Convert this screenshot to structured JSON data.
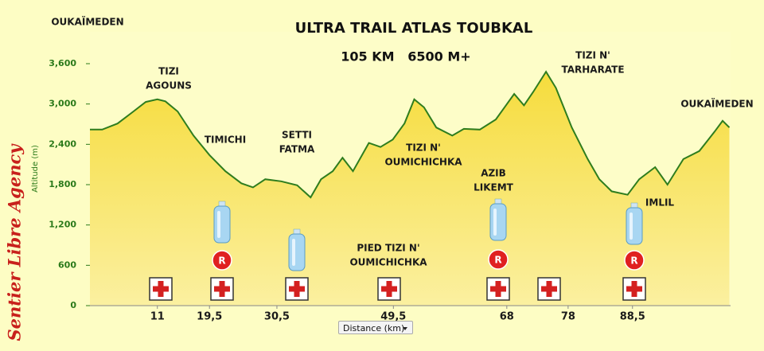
{
  "chart_data": {
    "type": "area",
    "title": "ULTRA TRAIL ATLAS TOUBKAL",
    "subtitle": "105 KM   6500 M+",
    "watermark": "Sentier Libre Agency",
    "y_label": "Altitude (m)",
    "x_label": "Distance (km)",
    "icon_label": "R",
    "color": "#2e7d1e",
    "fill": "#f6df4a",
    "x": [
      0,
      2.0,
      4.5,
      7.1,
      9.1,
      11.0,
      12.3,
      14.3,
      16.9,
      19.5,
      22.1,
      24.7,
      26.6,
      28.6,
      31.2,
      33.8,
      36.0,
      37.7,
      39.6,
      41.2,
      42.9,
      45.5,
      47.4,
      49.4,
      51.3,
      52.9,
      54.5,
      56.5,
      59.1,
      61.0,
      63.6,
      66.2,
      69.2,
      70.8,
      72.3,
      74.4,
      76.0,
      78.6,
      81.2,
      83.1,
      85.1,
      87.7,
      89.6,
      92.2,
      94.2,
      96.8,
      99.4,
      101.9,
      103.2,
      104.3
    ],
    "values": [
      2620,
      2620,
      2710,
      2890,
      3030,
      3070,
      3040,
      2890,
      2530,
      2240,
      2000,
      1820,
      1760,
      1880,
      1850,
      1790,
      1610,
      1880,
      2000,
      2200,
      2000,
      2420,
      2360,
      2470,
      2710,
      3070,
      2950,
      2650,
      2530,
      2630,
      2620,
      2770,
      3150,
      2980,
      3180,
      3480,
      3240,
      2650,
      2180,
      1880,
      1700,
      1650,
      1880,
      2060,
      1800,
      2180,
      2300,
      2590,
      2750,
      2650
    ],
    "xlim": [
      0,
      104.5
    ],
    "xticks": [
      11,
      {
        "value": 19.5,
        "label": "19,5"
      },
      {
        "value": 30.5,
        "label": "30,5"
      },
      {
        "value": 49.5,
        "label": "49,5"
      },
      68,
      78,
      {
        "value": 88.5,
        "label": "88,5"
      }
    ],
    "ylim": [
      0,
      3600
    ],
    "yticks": [
      0,
      600,
      {
        "value": 1200,
        "label": "1,200"
      },
      {
        "value": 1800,
        "label": "1,800"
      },
      {
        "value": 2400,
        "label": "2,400"
      },
      {
        "value": 3000,
        "label": "3,000"
      },
      {
        "value": 3600,
        "label": "3,600"
      }
    ],
    "annotations": [
      [
        "OUKAÏMEDEN"
      ],
      [
        "TIZI",
        "AGOUNS"
      ],
      [
        "TIMICHI"
      ],
      [
        "SETTI",
        "FATMA"
      ],
      [
        "TIZI N'",
        "OUMICHICHKA"
      ],
      [
        "PIED TIZI N'",
        "OUMICHICHKA"
      ],
      [
        "AZIB",
        "LIKEMT"
      ],
      [
        "TIZI N'",
        "TARHARATE"
      ],
      [
        "IMLIL"
      ],
      [
        "OUKAÏMEDEN"
      ]
    ]
  }
}
